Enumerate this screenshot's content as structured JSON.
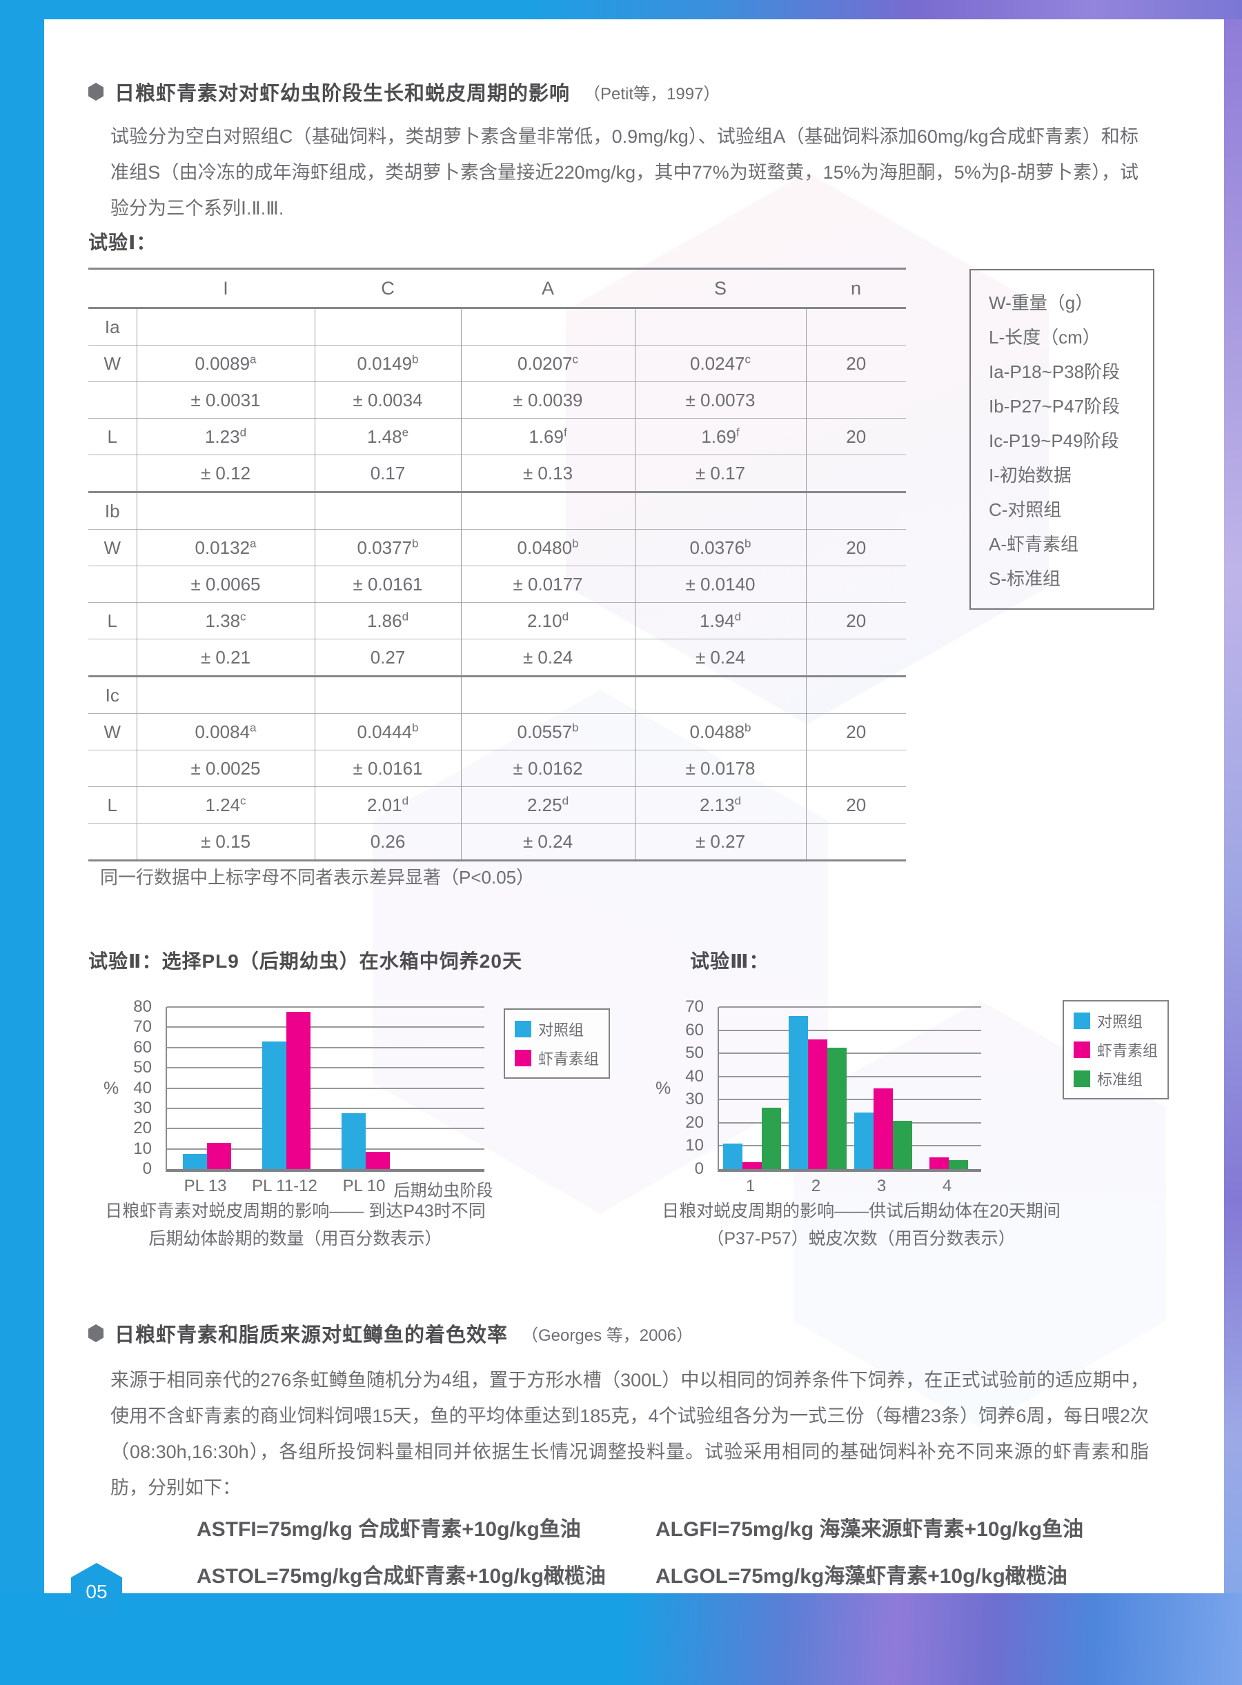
{
  "page_number": "05",
  "colors": {
    "frame_blue": "#1ba0e4",
    "frame_purple": "#8f7bd8",
    "series_control": "#29ABE2",
    "series_astaxanthin": "#EC008C",
    "series_standard": "#2BA24D"
  },
  "section1": {
    "bullet_title": "日粮虾青素对对虾幼虫阶段生长和蜕皮周期的影响",
    "title_ref": "（Petit等，1997）",
    "intro": "试验分为空白对照组C（基础饲料，类胡萝卜素含量非常低，0.9mg/kg）、试验组A（基础饲料添加60mg/kg合成虾青素）和标准组S（由冷冻的成年海虾组成，类胡萝卜素含量接近220mg/kg，其中77%为斑蝥黄，15%为海胆酮，5%为β-胡萝卜素），试验分为三个系列Ⅰ.Ⅱ.Ⅲ.",
    "exp1_label": "试验Ⅰ：",
    "table": {
      "headers": [
        "I",
        "C",
        "A",
        "S",
        "n"
      ],
      "rows": [
        {
          "label": "Ia",
          "section": true,
          "cells": [
            [
              "",
              ""
            ],
            [
              "",
              ""
            ],
            [
              "",
              ""
            ],
            [
              "",
              ""
            ],
            [
              "",
              ""
            ]
          ]
        },
        {
          "label": "W",
          "cells": [
            [
              "0.0089",
              "a"
            ],
            [
              "0.0149",
              "b"
            ],
            [
              "0.0207",
              "c"
            ],
            [
              "0.0247",
              "c"
            ],
            [
              "20",
              ""
            ]
          ]
        },
        {
          "label": "",
          "cells": [
            [
              "± 0.0031",
              ""
            ],
            [
              "± 0.0034",
              ""
            ],
            [
              "± 0.0039",
              ""
            ],
            [
              "± 0.0073",
              ""
            ],
            [
              "",
              ""
            ]
          ]
        },
        {
          "label": "L",
          "cells": [
            [
              "1.23",
              "d"
            ],
            [
              "1.48",
              "e"
            ],
            [
              "1.69",
              "f"
            ],
            [
              "1.69",
              "f"
            ],
            [
              "20",
              ""
            ]
          ]
        },
        {
          "label": "",
          "cells": [
            [
              "± 0.12",
              ""
            ],
            [
              "0.17",
              ""
            ],
            [
              "± 0.13",
              ""
            ],
            [
              "± 0.17",
              ""
            ],
            [
              "",
              ""
            ]
          ]
        },
        {
          "label": "Ib",
          "section": true,
          "cells": [
            [
              "",
              ""
            ],
            [
              "",
              ""
            ],
            [
              "",
              ""
            ],
            [
              "",
              ""
            ],
            [
              "",
              ""
            ]
          ]
        },
        {
          "label": "W",
          "cells": [
            [
              "0.0132",
              "a"
            ],
            [
              "0.0377",
              "b"
            ],
            [
              "0.0480",
              "b"
            ],
            [
              "0.0376",
              "b"
            ],
            [
              "20",
              ""
            ]
          ]
        },
        {
          "label": "",
          "cells": [
            [
              "± 0.0065",
              ""
            ],
            [
              "± 0.0161",
              ""
            ],
            [
              "± 0.0177",
              ""
            ],
            [
              "± 0.0140",
              ""
            ],
            [
              "",
              ""
            ]
          ]
        },
        {
          "label": "L",
          "cells": [
            [
              "1.38",
              "c"
            ],
            [
              "1.86",
              "d"
            ],
            [
              "2.10",
              "d"
            ],
            [
              "1.94",
              "d"
            ],
            [
              "20",
              ""
            ]
          ]
        },
        {
          "label": "",
          "cells": [
            [
              "± 0.21",
              ""
            ],
            [
              "0.27",
              ""
            ],
            [
              "± 0.24",
              ""
            ],
            [
              "± 0.24",
              ""
            ],
            [
              "",
              ""
            ]
          ]
        },
        {
          "label": "Ic",
          "section": true,
          "cells": [
            [
              "",
              ""
            ],
            [
              "",
              ""
            ],
            [
              "",
              ""
            ],
            [
              "",
              ""
            ],
            [
              "",
              ""
            ]
          ]
        },
        {
          "label": "W",
          "cells": [
            [
              "0.0084",
              "a"
            ],
            [
              "0.0444",
              "b"
            ],
            [
              "0.0557",
              "b"
            ],
            [
              "0.0488",
              "b"
            ],
            [
              "20",
              ""
            ]
          ]
        },
        {
          "label": "",
          "cells": [
            [
              "± 0.0025",
              ""
            ],
            [
              "± 0.0161",
              ""
            ],
            [
              "± 0.0162",
              ""
            ],
            [
              "± 0.0178",
              ""
            ],
            [
              "",
              ""
            ]
          ]
        },
        {
          "label": "L",
          "cells": [
            [
              "1.24",
              "c"
            ],
            [
              "2.01",
              "d"
            ],
            [
              "2.25",
              "d"
            ],
            [
              "2.13",
              "d"
            ],
            [
              "20",
              ""
            ]
          ]
        },
        {
          "label": "",
          "cells": [
            [
              "± 0.15",
              ""
            ],
            [
              "0.26",
              ""
            ],
            [
              "± 0.24",
              ""
            ],
            [
              "± 0.27",
              ""
            ],
            [
              "",
              ""
            ]
          ]
        }
      ]
    },
    "key_box": [
      "W-重量（g）",
      "L-长度（cm）",
      "Ia-P18~P38阶段",
      "Ib-P27~P47阶段",
      "Ic-P19~P49阶段",
      "I-初始数据",
      "C-对照组",
      "A-虾青素组",
      "S-标准组"
    ],
    "footnote": "同一行数据中上标字母不同者表示差异显著（P<0.05）"
  },
  "exp2_heading": "试验Ⅱ：选择PL9（后期幼虫）在水箱中饲养20天",
  "exp3_heading": "试验Ⅲ：",
  "chart_data": [
    {
      "type": "bar",
      "categories": [
        "PL 13",
        "PL 11-12",
        "PL 10",
        "后期幼虫阶段"
      ],
      "series": [
        {
          "name": "对照组",
          "color": "#29ABE2",
          "values": [
            7.5,
            63,
            27.5,
            null
          ]
        },
        {
          "name": "虾青素组",
          "color": "#EC008C",
          "values": [
            13,
            77.5,
            8.5,
            null
          ]
        }
      ],
      "ylabel": "%",
      "ylim": [
        0,
        80
      ],
      "ytick": 10,
      "grid": true,
      "legend_position": "right",
      "caption_line1": "日粮虾青素对蜕皮周期的影响—— 到达P43时不同",
      "caption_line2": "后期幼体龄期的数量（用百分数表示）"
    },
    {
      "type": "bar",
      "categories": [
        "1",
        "2",
        "3",
        "4"
      ],
      "series": [
        {
          "name": "对照组",
          "color": "#29ABE2",
          "values": [
            11,
            66,
            24.5,
            0
          ]
        },
        {
          "name": "虾青素组",
          "color": "#EC008C",
          "values": [
            3,
            56,
            35,
            5
          ]
        },
        {
          "name": "标准组",
          "color": "#2BA24D",
          "values": [
            26.5,
            52.5,
            21,
            4
          ]
        }
      ],
      "ylabel": "%",
      "ylim": [
        0,
        70
      ],
      "ytick": 10,
      "grid": true,
      "legend_position": "right",
      "caption_line1": "日粮对蜕皮周期的影响——供试后期幼体在20天期间",
      "caption_line2": "（P37-P57）蜕皮次数（用百分数表示）"
    }
  ],
  "section2": {
    "bullet_title": "日粮虾青素和脂质来源对虹鳟鱼的着色效率",
    "title_ref": "（Georges 等，2006）",
    "intro": "来源于相同亲代的276条虹鳟鱼随机分为4组，置于方形水槽（300L）中以相同的饲养条件下饲养，在正式试验前的适应期中，使用不含虾青素的商业饲料饲喂15天，鱼的平均体重达到185克，4个试验组各分为一式三份（每槽23条）饲养6周，每日喂2次（08:30h,16:30h），各组所投饲料量相同并依据生长情况调整投料量。试验采用相同的基础饲料补充不同来源的虾青素和脂肪，分别如下：",
    "formulas": [
      "ASTFI=75mg/kg 合成虾青素+10g/kg鱼油",
      "ALGFI=75mg/kg 海藻来源虾青素+10g/kg鱼油",
      "ASTOL=75mg/kg合成虾青素+10g/kg橄榄油",
      "ALGOL=75mg/kg海藻虾青素+10g/kg橄榄油"
    ]
  }
}
